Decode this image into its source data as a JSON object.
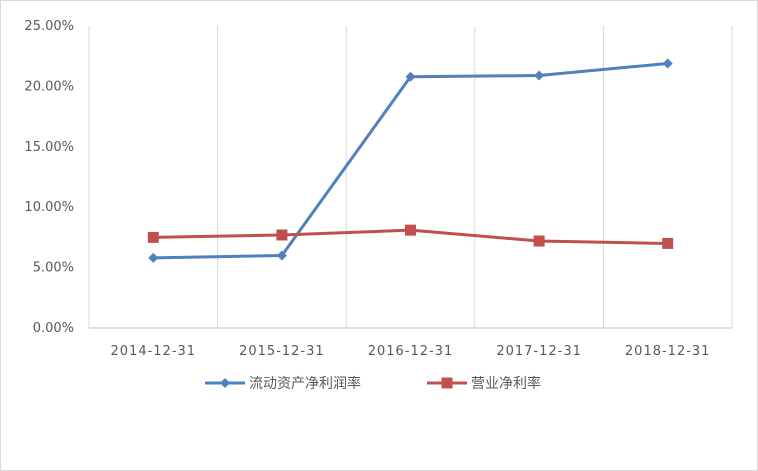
{
  "chart_data": {
    "type": "line",
    "title": "",
    "xlabel": "",
    "ylabel": "",
    "categories": [
      "2014-12-31",
      "2015-12-31",
      "2016-12-31",
      "2017-12-31",
      "2018-12-31"
    ],
    "ylim": [
      0,
      25
    ],
    "yticks": [
      "0.00%",
      "5.00%",
      "10.00%",
      "15.00%",
      "20.00%",
      "25.00%"
    ],
    "grid": "vertical",
    "legend_position": "bottom",
    "series": [
      {
        "name": "流动资产净利润率",
        "color": "#4f81bd",
        "marker": "diamond",
        "values": [
          5.8,
          6.0,
          20.8,
          20.9,
          21.9
        ]
      },
      {
        "name": "营业净利率",
        "color": "#c0504d",
        "marker": "square",
        "values": [
          7.5,
          7.7,
          8.1,
          7.2,
          7.0
        ]
      }
    ]
  }
}
